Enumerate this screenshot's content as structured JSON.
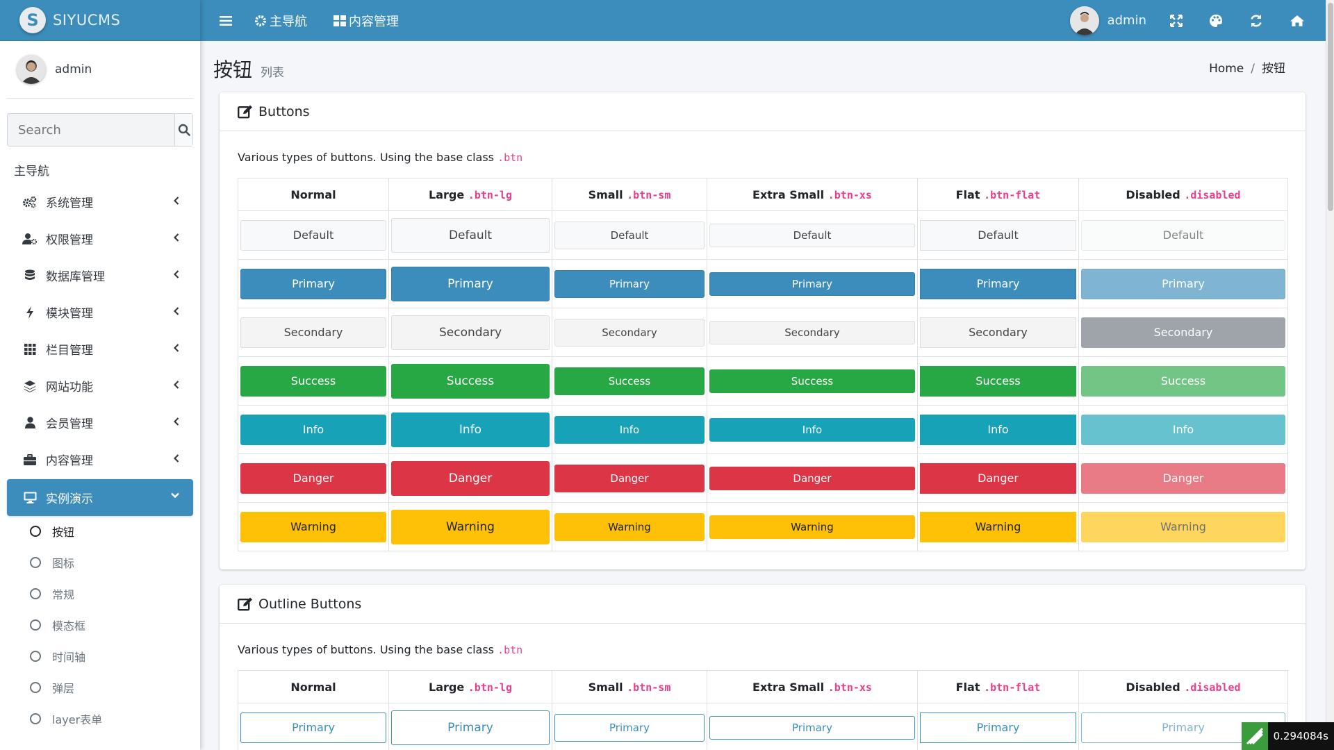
{
  "brand": {
    "logo_letter": "S",
    "name": "SIYUCMS"
  },
  "user": {
    "name": "admin"
  },
  "search": {
    "placeholder": "Search"
  },
  "nav": {
    "header": "主导航",
    "items": [
      {
        "label": "系统管理",
        "icon": "gears-icon"
      },
      {
        "label": "权限管理",
        "icon": "user-cog-icon"
      },
      {
        "label": "数据库管理",
        "icon": "database-icon"
      },
      {
        "label": "模块管理",
        "icon": "bolt-icon"
      },
      {
        "label": "栏目管理",
        "icon": "grid-icon"
      },
      {
        "label": "网站功能",
        "icon": "layers-icon"
      },
      {
        "label": "会员管理",
        "icon": "user-icon"
      },
      {
        "label": "内容管理",
        "icon": "briefcase-icon"
      },
      {
        "label": "实例演示",
        "icon": "desktop-icon",
        "active": true
      }
    ],
    "sub_items": [
      {
        "label": "按钮",
        "active": true
      },
      {
        "label": "图标"
      },
      {
        "label": "常规"
      },
      {
        "label": "模态框"
      },
      {
        "label": "时间轴"
      },
      {
        "label": "弹层"
      },
      {
        "label": "layer表单"
      }
    ]
  },
  "topbar": {
    "main_nav": "主导航",
    "content_mgmt": "内容管理",
    "user_name": "admin"
  },
  "header": {
    "title": "按钮",
    "subtitle": "列表"
  },
  "breadcrumb": {
    "home": "Home",
    "current": "按钮"
  },
  "buttons_card": {
    "title": "Buttons",
    "desc": "Various types of buttons. Using the base class",
    "desc_code": ".btn",
    "columns": [
      {
        "label": "Normal",
        "code": ""
      },
      {
        "label": "Large",
        "code": ".btn-lg"
      },
      {
        "label": "Small",
        "code": ".btn-sm"
      },
      {
        "label": "Extra Small",
        "code": ".btn-xs"
      },
      {
        "label": "Flat",
        "code": ".btn-flat"
      },
      {
        "label": "Disabled",
        "code": ".disabled"
      }
    ],
    "rows": [
      "Default",
      "Primary",
      "Secondary",
      "Success",
      "Info",
      "Danger",
      "Warning"
    ]
  },
  "outline_card": {
    "title": "Outline Buttons",
    "desc": "Various types of buttons. Using the base class",
    "desc_code": ".btn",
    "columns": [
      {
        "label": "Normal",
        "code": ""
      },
      {
        "label": "Large",
        "code": ".btn-lg"
      },
      {
        "label": "Small",
        "code": ".btn-sm"
      },
      {
        "label": "Extra Small",
        "code": ".btn-xs"
      },
      {
        "label": "Flat",
        "code": ".btn-flat"
      },
      {
        "label": "Disabled",
        "code": ".disabled"
      }
    ],
    "rows": [
      "Primary"
    ]
  },
  "timer": {
    "value": "0.294084s"
  },
  "colors": {
    "accent": "#3c8dbc",
    "default": "#f8f9fa",
    "secondary": "#f4f4f4",
    "success": "#28a745",
    "info": "#17a2b8",
    "danger": "#dc3545",
    "warning": "#ffc107"
  }
}
